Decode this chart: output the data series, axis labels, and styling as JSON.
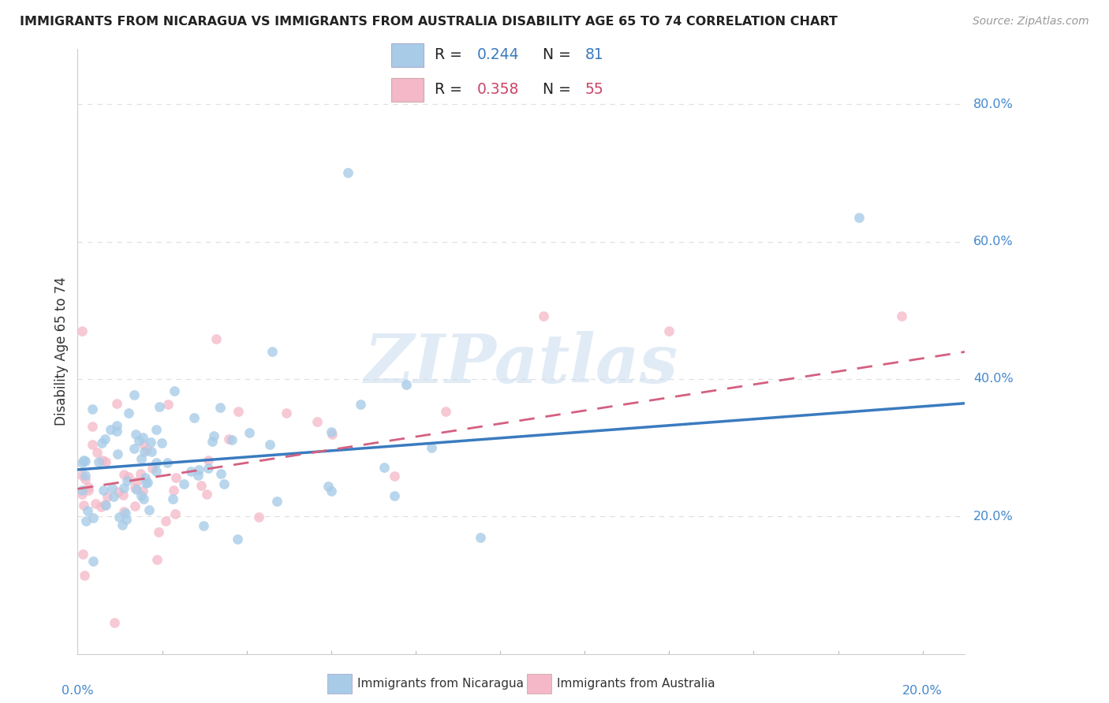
{
  "title": "IMMIGRANTS FROM NICARAGUA VS IMMIGRANTS FROM AUSTRALIA DISABILITY AGE 65 TO 74 CORRELATION CHART",
  "source": "Source: ZipAtlas.com",
  "ylabel": "Disability Age 65 to 74",
  "watermark": "ZIPatlas",
  "series": [
    {
      "name": "Immigrants from Nicaragua",
      "scatter_color": "#a8cce8",
      "scatter_edge": "#a8cce8",
      "line_color": "#3a7bbf",
      "R": 0.244,
      "N": 81,
      "line_style": "solid"
    },
    {
      "name": "Immigrants from Australia",
      "scatter_color": "#f4b8c8",
      "scatter_edge": "#f4b8c8",
      "line_color": "#d46080",
      "R": 0.358,
      "N": 55,
      "line_style": "dashed"
    }
  ],
  "xlim": [
    0.0,
    0.21
  ],
  "ylim": [
    0.0,
    0.88
  ],
  "yticks": [
    0.2,
    0.4,
    0.6,
    0.8
  ],
  "ytick_labels": [
    "20.0%",
    "40.0%",
    "60.0%",
    "80.0%"
  ],
  "xtick_left_label": "0.0%",
  "xtick_right_label": "20.0%",
  "background_color": "#ffffff",
  "grid_color": "#e0e0e0",
  "title_color": "#222222",
  "axis_label_color": "#4488cc",
  "legend_r_color_nic": "#3a7bbf",
  "legend_r_color_aus": "#cc4466",
  "legend_n_color_nic": "#3a7bbf",
  "legend_n_color_aus": "#cc4466",
  "watermark_color": "#c8dcf0"
}
